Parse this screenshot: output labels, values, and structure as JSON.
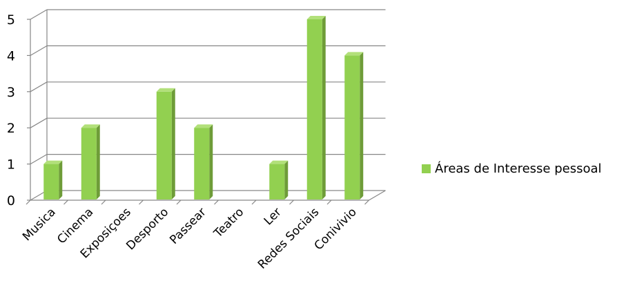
{
  "chart_data": {
    "type": "bar",
    "categories": [
      "Musica",
      "Cinema",
      "Exposiçoes",
      "Desporto",
      "Passear",
      "Teatro",
      "Ler",
      "Redes Sociais",
      "Conivivio"
    ],
    "series": [
      {
        "name": "Áreas de Interesse pessoal",
        "values": [
          1,
          2,
          0,
          3,
          2,
          0,
          1,
          5,
          4
        ]
      }
    ],
    "yticks": [
      "0",
      "1",
      "2",
      "3",
      "4",
      "5"
    ],
    "ylim": [
      0,
      5
    ],
    "grid": true,
    "legend_position": "right",
    "colors": {
      "bar_front": "#92D050",
      "bar_side": "#6E9C38",
      "bar_top": "#B2E07A",
      "grid": "#868686",
      "legend": "#92D050"
    }
  }
}
